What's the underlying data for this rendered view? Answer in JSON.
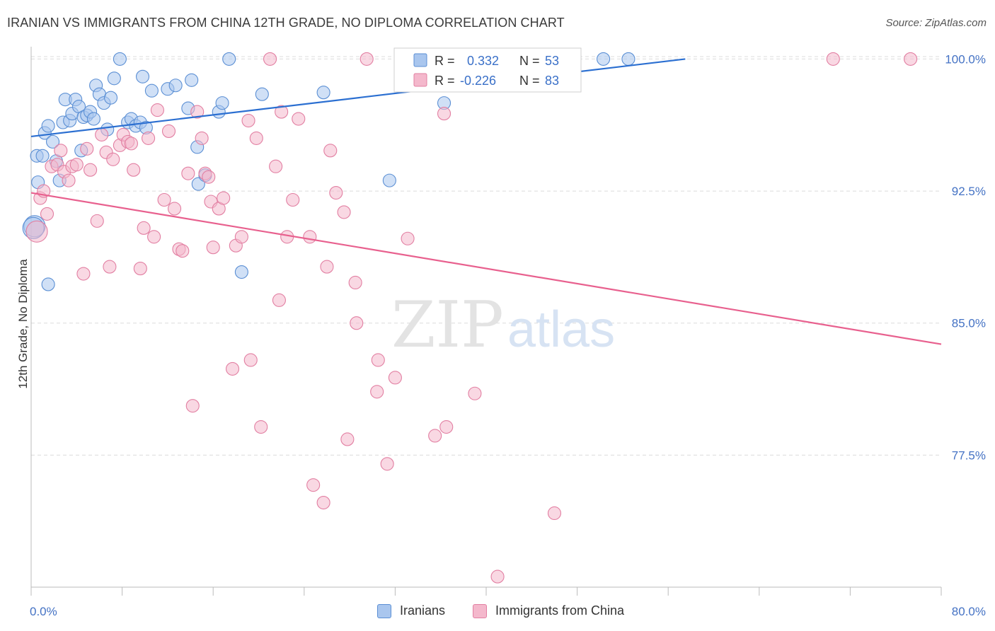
{
  "title": "IRANIAN VS IMMIGRANTS FROM CHINA 12TH GRADE, NO DIPLOMA CORRELATION CHART",
  "source": "Source: ZipAtlas.com",
  "watermark": {
    "zip": "ZIP",
    "atlas": "atlas"
  },
  "colors": {
    "blue_fill": "#a9c6ee",
    "blue_stroke": "#5b8fd4",
    "blue_line": "#2b6fd1",
    "pink_fill": "#f4b8cc",
    "pink_stroke": "#e27fa2",
    "pink_line": "#e8608e",
    "tick_label": "#4472c4",
    "grid": "#dcdcdc"
  },
  "legend_box": {
    "rows": [
      {
        "r_label": "R =",
        "r_value": "0.332",
        "n_label": "N =",
        "n_value": "53"
      },
      {
        "r_label": "R =",
        "r_value": "-0.226",
        "n_label": "N =",
        "n_value": "83"
      }
    ]
  },
  "legend_bottom": {
    "iranians": "Iranians",
    "china": "Immigrants from China"
  },
  "chart_data": {
    "type": "scatter",
    "title": "IRANIAN VS IMMIGRANTS FROM CHINA 12TH GRADE, NO DIPLOMA CORRELATION CHART",
    "xlabel": "",
    "ylabel": "12th Grade, No Diploma",
    "xlim": [
      0,
      80
    ],
    "ylim": [
      70,
      100.7
    ],
    "x_tick_labels": [
      "0.0%",
      "80.0%"
    ],
    "y_ticks": [
      100.0,
      92.5,
      85.0,
      77.5
    ],
    "y_tick_labels": [
      "100.0%",
      "92.5%",
      "85.0%",
      "77.5%"
    ],
    "grid": true,
    "legend_placement": "top-center",
    "series": [
      {
        "name": "Iranians",
        "r": 0.332,
        "n": 53,
        "trend": {
          "x0": 0,
          "y0": 95.6,
          "x1": 57.5,
          "y1": 100.0
        },
        "points": [
          [
            0.5,
            94.5
          ],
          [
            0.6,
            93.0
          ],
          [
            0.3,
            90.5
          ],
          [
            1.2,
            95.8
          ],
          [
            1.5,
            96.2
          ],
          [
            1.9,
            95.3
          ],
          [
            2.2,
            94.2
          ],
          [
            2.5,
            93.1
          ],
          [
            1.0,
            94.5
          ],
          [
            2.8,
            96.4
          ],
          [
            3.0,
            97.7
          ],
          [
            3.4,
            96.5
          ],
          [
            3.6,
            96.9
          ],
          [
            3.9,
            97.7
          ],
          [
            4.2,
            97.3
          ],
          [
            4.4,
            94.8
          ],
          [
            4.6,
            96.7
          ],
          [
            4.9,
            96.8
          ],
          [
            5.2,
            97.0
          ],
          [
            5.5,
            96.6
          ],
          [
            5.7,
            98.5
          ],
          [
            6.0,
            98.0
          ],
          [
            6.4,
            97.5
          ],
          [
            6.7,
            96.0
          ],
          [
            7.0,
            97.8
          ],
          [
            7.3,
            98.9
          ],
          [
            7.8,
            100.0
          ],
          [
            8.5,
            96.4
          ],
          [
            8.8,
            96.6
          ],
          [
            9.2,
            96.2
          ],
          [
            9.6,
            96.4
          ],
          [
            9.8,
            99.0
          ],
          [
            10.1,
            96.1
          ],
          [
            10.6,
            98.2
          ],
          [
            12.0,
            98.3
          ],
          [
            12.7,
            98.5
          ],
          [
            13.8,
            97.2
          ],
          [
            14.1,
            98.8
          ],
          [
            14.6,
            95.0
          ],
          [
            14.7,
            92.9
          ],
          [
            15.3,
            93.4
          ],
          [
            16.5,
            97.0
          ],
          [
            16.8,
            97.5
          ],
          [
            17.4,
            100.0
          ],
          [
            18.5,
            87.9
          ],
          [
            20.3,
            98.0
          ],
          [
            25.7,
            98.1
          ],
          [
            31.5,
            93.1
          ],
          [
            36.3,
            97.5
          ],
          [
            50.3,
            100.0
          ],
          [
            52.5,
            100.0
          ],
          [
            1.5,
            87.2
          ],
          [
            0.2,
            90.4
          ]
        ]
      },
      {
        "name": "Immigrants from China",
        "r": -0.226,
        "n": 83,
        "trend": {
          "x0": 0,
          "y0": 92.4,
          "x1": 80,
          "y1": 83.8
        },
        "points": [
          [
            0.5,
            90.2
          ],
          [
            0.8,
            92.1
          ],
          [
            1.1,
            92.5
          ],
          [
            1.4,
            91.2
          ],
          [
            1.8,
            93.9
          ],
          [
            2.3,
            94.0
          ],
          [
            2.6,
            94.8
          ],
          [
            2.9,
            93.6
          ],
          [
            3.3,
            93.1
          ],
          [
            3.6,
            93.9
          ],
          [
            4.0,
            94.0
          ],
          [
            4.6,
            87.8
          ],
          [
            4.9,
            94.9
          ],
          [
            5.2,
            93.7
          ],
          [
            5.8,
            90.8
          ],
          [
            6.2,
            95.7
          ],
          [
            6.6,
            94.7
          ],
          [
            6.9,
            88.2
          ],
          [
            7.2,
            94.3
          ],
          [
            7.8,
            95.1
          ],
          [
            8.1,
            95.7
          ],
          [
            8.5,
            95.3
          ],
          [
            8.8,
            95.2
          ],
          [
            9.0,
            93.7
          ],
          [
            9.6,
            88.1
          ],
          [
            9.9,
            90.4
          ],
          [
            10.3,
            95.5
          ],
          [
            10.8,
            89.9
          ],
          [
            11.1,
            97.1
          ],
          [
            11.7,
            92.0
          ],
          [
            12.1,
            95.9
          ],
          [
            12.6,
            91.5
          ],
          [
            13.0,
            89.2
          ],
          [
            13.3,
            89.1
          ],
          [
            13.8,
            93.5
          ],
          [
            14.2,
            80.3
          ],
          [
            14.6,
            97.0
          ],
          [
            15.0,
            95.5
          ],
          [
            15.3,
            93.5
          ],
          [
            15.6,
            93.3
          ],
          [
            15.8,
            91.9
          ],
          [
            16.0,
            89.3
          ],
          [
            16.5,
            91.5
          ],
          [
            16.9,
            92.1
          ],
          [
            17.7,
            82.4
          ],
          [
            18.0,
            89.4
          ],
          [
            18.5,
            89.9
          ],
          [
            19.1,
            96.5
          ],
          [
            19.3,
            82.9
          ],
          [
            19.8,
            95.5
          ],
          [
            20.2,
            79.1
          ],
          [
            21.0,
            100.0
          ],
          [
            21.5,
            93.9
          ],
          [
            21.8,
            86.3
          ],
          [
            22.0,
            97.0
          ],
          [
            22.5,
            89.9
          ],
          [
            23.0,
            92.0
          ],
          [
            23.5,
            96.6
          ],
          [
            24.5,
            89.9
          ],
          [
            24.8,
            75.8
          ],
          [
            25.7,
            74.8
          ],
          [
            26.0,
            88.2
          ],
          [
            26.3,
            94.8
          ],
          [
            26.8,
            92.4
          ],
          [
            27.5,
            91.3
          ],
          [
            27.8,
            78.4
          ],
          [
            28.5,
            87.3
          ],
          [
            28.6,
            85.0
          ],
          [
            29.5,
            100.0
          ],
          [
            30.5,
            82.9
          ],
          [
            30.4,
            81.1
          ],
          [
            31.3,
            77.0
          ],
          [
            32.0,
            81.9
          ],
          [
            32.5,
            100.0
          ],
          [
            33.1,
            89.8
          ],
          [
            35.5,
            78.6
          ],
          [
            36.3,
            96.9
          ],
          [
            36.5,
            79.1
          ],
          [
            39.0,
            81.0
          ],
          [
            41.0,
            70.6
          ],
          [
            46.0,
            74.2
          ],
          [
            70.5,
            100.0
          ],
          [
            77.3,
            100.0
          ]
        ]
      }
    ]
  }
}
